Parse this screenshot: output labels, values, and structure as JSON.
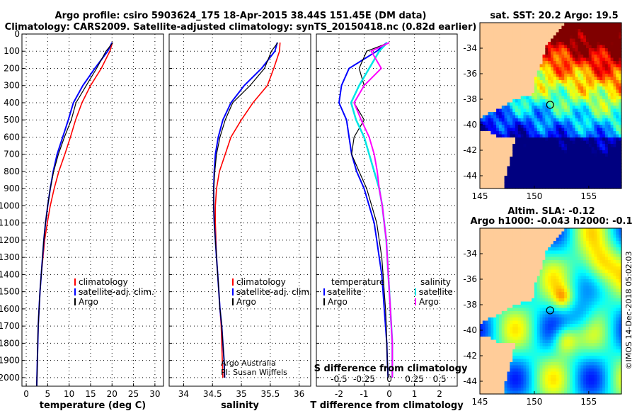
{
  "header": {
    "line1": "Argo profile: csiro 5903624_175 18-Apr-2015 38.44S 151.45E (DM data)",
    "line2": "Climatology: CARS2009. Satellite-adjusted climatology: synTS_20150418.nc (0.82d earlier)"
  },
  "colors": {
    "climatology": "#ff0000",
    "satellite": "#0000ff",
    "argo": "#000000",
    "s_satellite": "#00e5e5",
    "s_argo": "#ff00ff",
    "land": "#ffcc99",
    "grid": "#000000"
  },
  "chart_data": [
    {
      "type": "line",
      "name": "temperature",
      "xlabel": "temperature (deg C)",
      "ylabel": "",
      "xlim": [
        -1,
        32
      ],
      "ylim": [
        2050,
        0
      ],
      "xticks": [
        "0",
        "5",
        "10",
        "15",
        "20",
        "25",
        "30"
      ],
      "yticks": [
        "0",
        "100",
        "200",
        "300",
        "400",
        "500",
        "600",
        "700",
        "800",
        "900",
        "1000",
        "1100",
        "1200",
        "1300",
        "1400",
        "1500",
        "1600",
        "1700",
        "1800",
        "1900",
        "2000"
      ],
      "legend": [
        "climatology",
        "satellite-adj. clim.",
        "Argo"
      ],
      "series": [
        {
          "name": "climatology",
          "x": [
            20.1,
            19.5,
            17.5,
            15.0,
            13.0,
            11.5,
            10.3,
            9.0,
            7.6,
            6.5,
            5.6,
            4.9,
            4.3,
            3.9,
            3.5,
            3.2,
            3.0,
            2.8,
            2.7,
            2.6,
            2.5,
            2.45
          ],
          "y": [
            50,
            100,
            200,
            300,
            400,
            500,
            600,
            700,
            800,
            900,
            1000,
            1100,
            1200,
            1300,
            1400,
            1500,
            1600,
            1700,
            1800,
            1900,
            2000,
            2050
          ]
        },
        {
          "name": "satellite-adj. clim.",
          "x": [
            20.0,
            19.0,
            16.0,
            13.2,
            11.0,
            9.8,
            8.5,
            7.2,
            6.3,
            5.6,
            5.0,
            4.5,
            4.1,
            3.8,
            3.5,
            3.2,
            3.0,
            2.8,
            2.7,
            2.6,
            2.5,
            2.45
          ],
          "y": [
            50,
            100,
            200,
            300,
            400,
            500,
            600,
            700,
            800,
            900,
            1000,
            1100,
            1200,
            1300,
            1400,
            1500,
            1600,
            1700,
            1800,
            1900,
            2000,
            2050
          ]
        },
        {
          "name": "Argo",
          "x": [
            20.2,
            18.6,
            16.4,
            14.0,
            11.6,
            10.5,
            8.9,
            7.5,
            6.4,
            5.6,
            5.0,
            4.5,
            4.1,
            3.8,
            3.5,
            3.2,
            3.0,
            2.8,
            2.7,
            2.6,
            2.5,
            2.45
          ],
          "y": [
            50,
            100,
            200,
            300,
            400,
            500,
            600,
            700,
            800,
            900,
            1000,
            1100,
            1200,
            1300,
            1400,
            1500,
            1600,
            1700,
            1800,
            1900,
            2000,
            2050
          ]
        }
      ]
    },
    {
      "type": "line",
      "name": "salinity",
      "xlabel": "salinity",
      "xlim": [
        33.75,
        36.2
      ],
      "ylim": [
        2050,
        0
      ],
      "xticks": [
        "34",
        "34.5",
        "35",
        "35.5",
        "36"
      ],
      "legend": [
        "climatology",
        "satellite-adj. clim.",
        "Argo"
      ],
      "annotation": [
        "Argo Australia",
        "PI: Susan Wijffels"
      ],
      "series": [
        {
          "name": "climatology",
          "x": [
            35.67,
            35.66,
            35.56,
            35.45,
            35.2,
            35.0,
            34.82,
            34.72,
            34.62,
            34.57,
            34.55,
            34.55,
            34.56,
            34.57,
            34.59,
            34.61,
            34.63,
            34.65,
            34.66,
            34.67,
            34.68
          ],
          "y": [
            50,
            100,
            200,
            300,
            400,
            500,
            600,
            700,
            800,
            900,
            1000,
            1100,
            1200,
            1300,
            1400,
            1500,
            1600,
            1700,
            1800,
            1900,
            2000
          ]
        },
        {
          "name": "satellite-adj. clim.",
          "x": [
            35.62,
            35.58,
            35.35,
            35.05,
            34.82,
            34.68,
            34.6,
            34.55,
            34.53,
            34.52,
            34.52,
            34.53,
            34.55,
            34.57,
            34.59,
            34.61,
            34.63,
            34.66,
            34.68,
            34.7,
            34.71
          ],
          "y": [
            50,
            100,
            200,
            300,
            400,
            500,
            600,
            700,
            800,
            900,
            1000,
            1100,
            1200,
            1300,
            1400,
            1500,
            1600,
            1700,
            1800,
            1900,
            2000
          ]
        },
        {
          "name": "Argo",
          "x": [
            35.63,
            35.52,
            35.4,
            35.15,
            34.85,
            34.72,
            34.63,
            34.57,
            34.54,
            34.52,
            34.52,
            34.53,
            34.55,
            34.57,
            34.59,
            34.61,
            34.63,
            34.66,
            34.68,
            34.7,
            34.71
          ],
          "y": [
            50,
            100,
            200,
            300,
            400,
            500,
            600,
            700,
            800,
            900,
            1000,
            1100,
            1200,
            1300,
            1400,
            1500,
            1600,
            1700,
            1800,
            1900,
            2000
          ]
        }
      ]
    },
    {
      "type": "line",
      "name": "difference",
      "xlabel": "T difference from climatology",
      "xlabel_top": "S difference from climatology",
      "xlim": [
        -2.9,
        2.7
      ],
      "ylim": [
        2050,
        0
      ],
      "xticks": [
        "-2",
        "-1",
        "0",
        "1",
        "2"
      ],
      "xticks_top": [
        "-0.5",
        "-0.25",
        "0",
        "0.25",
        "0.5"
      ],
      "legend_left_title": "temperature",
      "legend_right_title": "salinity",
      "legend_left": [
        "satellite",
        "Argo"
      ],
      "legend_right": [
        "satellite",
        "Argo"
      ],
      "series": [
        {
          "name": "T satellite",
          "x": [
            -0.1,
            -0.5,
            -1.6,
            -1.9,
            -2.0,
            -1.7,
            -1.6,
            -1.5,
            -1.3,
            -1.0,
            -0.8,
            -0.6,
            -0.5,
            -0.4,
            -0.3,
            -0.25,
            -0.2,
            -0.15,
            -0.1,
            -0.08,
            -0.05
          ],
          "y": [
            50,
            100,
            200,
            300,
            400,
            500,
            600,
            700,
            800,
            900,
            1000,
            1100,
            1200,
            1300,
            1400,
            1500,
            1600,
            1700,
            1800,
            1900,
            2000
          ]
        },
        {
          "name": "T Argo",
          "x": [
            0.0,
            -0.9,
            -1.2,
            -1.0,
            -1.4,
            -1.0,
            -1.4,
            -1.5,
            -1.2,
            -0.9,
            -0.7,
            -0.5,
            -0.4,
            -0.3,
            -0.25,
            -0.2,
            -0.15,
            -0.12,
            -0.1,
            -0.08,
            -0.05
          ],
          "y": [
            50,
            100,
            200,
            300,
            400,
            500,
            600,
            700,
            800,
            900,
            1000,
            1100,
            1200,
            1300,
            1400,
            1500,
            1600,
            1700,
            1800,
            1900,
            2000
          ]
        },
        {
          "name": "S satellite",
          "x": [
            -0.02,
            -0.1,
            -0.2,
            -0.3,
            -0.38,
            -0.33,
            -0.25,
            -0.2,
            -0.15,
            -0.1,
            -0.07,
            -0.05,
            -0.03,
            -0.02,
            -0.01,
            0.0,
            0.01,
            0.02,
            0.03,
            0.03,
            0.03
          ],
          "y": [
            50,
            100,
            200,
            300,
            400,
            500,
            600,
            700,
            800,
            900,
            1000,
            1100,
            1200,
            1300,
            1400,
            1500,
            1600,
            1700,
            1800,
            1900,
            2000
          ]
        },
        {
          "name": "S Argo",
          "x": [
            0.0,
            -0.18,
            -0.08,
            -0.25,
            -0.35,
            -0.28,
            -0.2,
            -0.15,
            -0.12,
            -0.1,
            -0.07,
            -0.05,
            -0.03,
            -0.02,
            -0.01,
            0.0,
            0.01,
            0.02,
            0.03,
            0.03,
            0.03
          ],
          "y": [
            50,
            100,
            200,
            300,
            400,
            500,
            600,
            700,
            800,
            900,
            1000,
            1100,
            1200,
            1300,
            1400,
            1500,
            1600,
            1700,
            1800,
            1900,
            2000
          ]
        }
      ]
    },
    {
      "type": "heatmap",
      "name": "sst_map",
      "title": "sat. SST: 20.2 Argo: 19.5",
      "xlim": [
        145,
        158
      ],
      "ylim": [
        -45,
        -32
      ],
      "xticks": [
        "145",
        "150",
        "155"
      ],
      "yticks": [
        "-34",
        "-36",
        "-38",
        "-40",
        "-42",
        "-44"
      ],
      "argo_position": {
        "lon": 151.45,
        "lat": -38.44
      }
    },
    {
      "type": "heatmap",
      "name": "sla_map",
      "title": "Altim. SLA: -0.12",
      "subtitle": "Argo h1000: -0.043 h2000: -0.1",
      "xlim": [
        145,
        158
      ],
      "ylim": [
        -45,
        -32
      ],
      "xticks": [
        "145",
        "150",
        "155"
      ],
      "yticks": [
        "-34",
        "-36",
        "-38",
        "-40",
        "-42",
        "-44"
      ],
      "argo_position": {
        "lon": 151.45,
        "lat": -38.44
      }
    }
  ],
  "footer": {
    "credit": "©IMOS 14-Dec-2018 05:02:03"
  }
}
